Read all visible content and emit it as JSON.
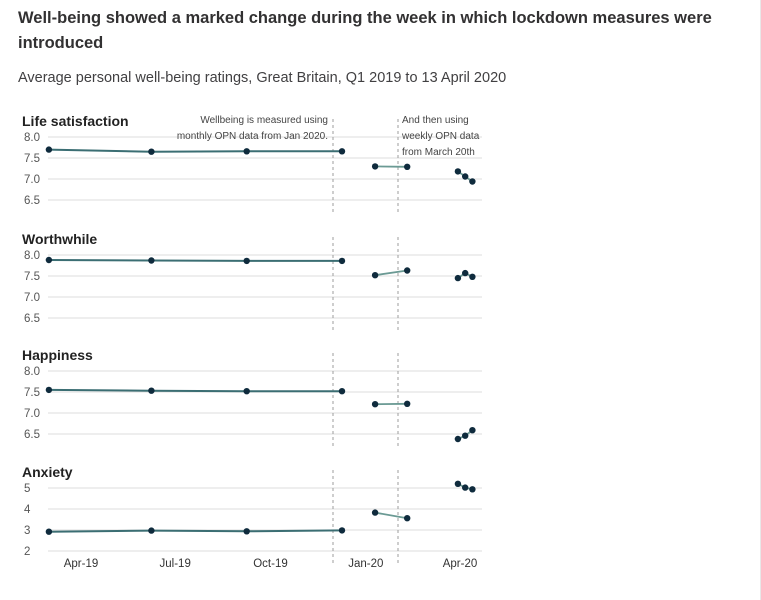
{
  "chart_data": {
    "type": "line",
    "title": "Well-being showed a marked change during the week in which lockdown measures were introduced",
    "subtitle": "Average personal well-being ratings, Great Britain, Q1 2019 to 13 April 2020",
    "x_tick_labels": [
      "Apr-19",
      "Jul-19",
      "Oct-19",
      "Jan-20",
      "Apr-20"
    ],
    "annotations": {
      "monthly": [
        "Wellbeing is measured using",
        "monthly OPN data from Jan 2020."
      ],
      "weekly": [
        "And then using",
        "weekly OPN data",
        "from March 20th"
      ]
    },
    "panels": [
      {
        "name": "Life satisfaction",
        "ylim": [
          6.5,
          8.0
        ],
        "y_ticks": [
          "8.0",
          "7.5",
          "7.0",
          "6.5"
        ],
        "segments": [
          {
            "x": [
              "2019-03-01",
              "2019-06-08",
              "2019-09-08",
              "2019-12-09"
            ],
            "y": [
              7.7,
              7.65,
              7.66,
              7.66
            ]
          },
          {
            "x": [
              "2020-01-10",
              "2020-02-10"
            ],
            "y": [
              7.3,
              7.29
            ]
          },
          {
            "x": [
              "2020-03-30",
              "2020-04-06",
              "2020-04-13"
            ],
            "y": [
              7.18,
              7.06,
              6.94
            ]
          }
        ]
      },
      {
        "name": "Worthwhile",
        "ylim": [
          6.5,
          8.0
        ],
        "y_ticks": [
          "8.0",
          "7.5",
          "7.0",
          "6.5"
        ],
        "segments": [
          {
            "x": [
              "2019-03-01",
              "2019-06-08",
              "2019-09-08",
              "2019-12-09"
            ],
            "y": [
              7.88,
              7.87,
              7.86,
              7.86
            ]
          },
          {
            "x": [
              "2020-01-10",
              "2020-02-10"
            ],
            "y": [
              7.52,
              7.63
            ]
          },
          {
            "x": [
              "2020-03-30",
              "2020-04-06",
              "2020-04-13"
            ],
            "y": [
              7.45,
              7.57,
              7.48
            ]
          }
        ]
      },
      {
        "name": "Happiness",
        "ylim": [
          6.5,
          8.0
        ],
        "y_ticks": [
          "8.0",
          "7.5",
          "7.0",
          "6.5"
        ],
        "segments": [
          {
            "x": [
              "2019-03-01",
              "2019-06-08",
              "2019-09-08",
              "2019-12-09"
            ],
            "y": [
              7.55,
              7.53,
              7.52,
              7.52
            ]
          },
          {
            "x": [
              "2020-01-10",
              "2020-02-10"
            ],
            "y": [
              7.21,
              7.22
            ]
          },
          {
            "x": [
              "2020-03-30",
              "2020-04-06",
              "2020-04-13"
            ],
            "y": [
              6.38,
              6.46,
              6.59
            ]
          }
        ]
      },
      {
        "name": "Anxiety",
        "ylim": [
          2,
          5.5
        ],
        "y_ticks": [
          "5",
          "4",
          "3",
          "2"
        ],
        "segments": [
          {
            "x": [
              "2019-03-01",
              "2019-06-08",
              "2019-09-08",
              "2019-12-09"
            ],
            "y": [
              2.92,
              2.97,
              2.94,
              2.98
            ]
          },
          {
            "x": [
              "2020-01-10",
              "2020-02-10"
            ],
            "y": [
              3.83,
              3.56
            ]
          },
          {
            "x": [
              "2020-03-30",
              "2020-04-06",
              "2020-04-13"
            ],
            "y": [
              5.2,
              5.02,
              4.94
            ]
          }
        ]
      }
    ],
    "colors": {
      "line_monthly": "#3b6e73",
      "line_weekly": "#6b9a94",
      "marker": "#0f2b3d",
      "gridline": "#dcdcdc",
      "divider": "#9c9c9c"
    }
  }
}
